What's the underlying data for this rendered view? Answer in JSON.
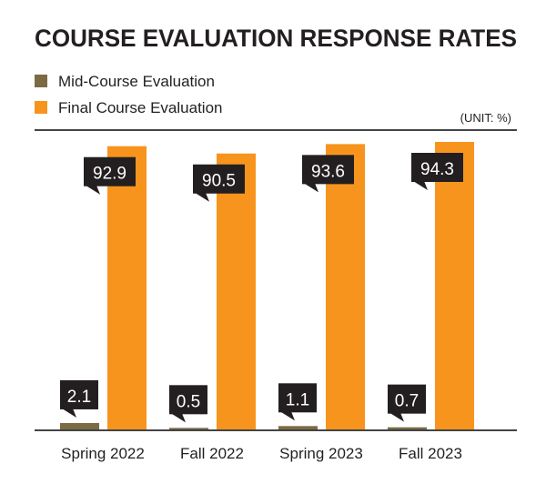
{
  "chart_data": {
    "type": "bar",
    "title": "COURSE EVALUATION RESPONSE RATES",
    "unit_label": "(UNIT: %)",
    "categories": [
      "Spring 2022",
      "Fall 2022",
      "Spring 2023",
      "Fall 2023"
    ],
    "series": [
      {
        "name": "Mid-Course Evaluation",
        "color": "#7b6a44",
        "values": [
          2.1,
          0.5,
          1.1,
          0.7
        ],
        "labels": [
          "2.1",
          "0.5",
          "1.1",
          "0.7"
        ]
      },
      {
        "name": "Final Course Evaluation",
        "color": "#f7941d",
        "values": [
          92.9,
          90.5,
          93.6,
          94.3
        ],
        "labels": [
          "92.9",
          "90.5",
          "93.6",
          "94.3"
        ]
      }
    ],
    "ylim": [
      0,
      98
    ],
    "grid": false,
    "legend_position": "top-left",
    "label_box_color": "#231f20"
  }
}
